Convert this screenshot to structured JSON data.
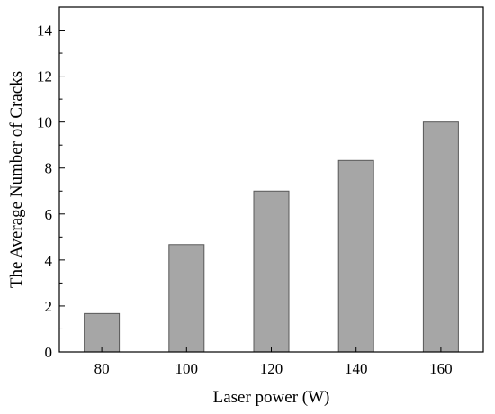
{
  "chart_data": {
    "type": "bar",
    "title": "",
    "xlabel": "Laser power (W)",
    "ylabel": "The Average Number of Cracks",
    "categories": [
      "80",
      "100",
      "120",
      "140",
      "160"
    ],
    "values": [
      1.67,
      4.67,
      7.0,
      8.33,
      10.0
    ],
    "ylim": [
      0,
      15
    ],
    "yticks": [
      0,
      2,
      4,
      6,
      8,
      10,
      12,
      14
    ],
    "grid": false,
    "bar_color": "#a6a6a6",
    "bar_edge_color": "#595959"
  }
}
